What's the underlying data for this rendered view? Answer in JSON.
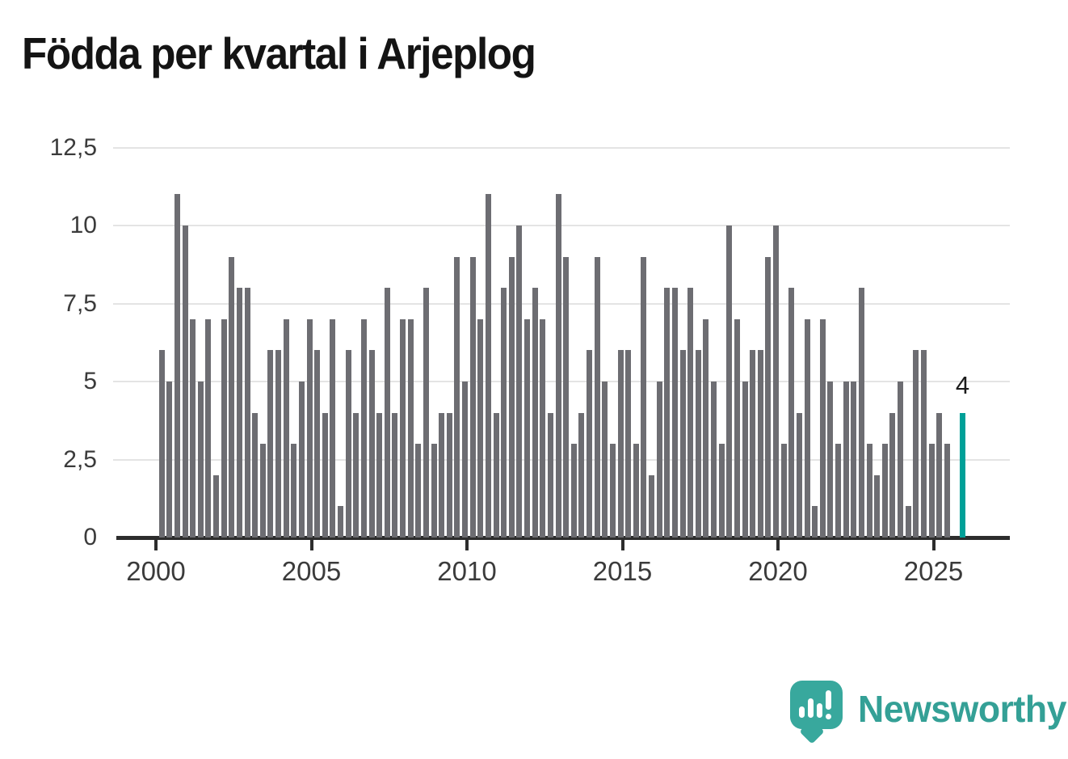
{
  "title": "Födda per kvartal i Arjeplog",
  "chart_data": {
    "type": "bar",
    "title": "Födda per kvartal i Arjeplog",
    "xlabel": "",
    "ylabel": "",
    "ylim": [
      0,
      12.5
    ],
    "grid": true,
    "legend": "none",
    "y_tick_labels": [
      "12,5",
      "10",
      "7,5",
      "5",
      "2,5",
      "0"
    ],
    "y_tick_values": [
      12.5,
      10,
      7.5,
      5,
      2.5,
      0
    ],
    "x_tick_labels": [
      "2000",
      "2005",
      "2010",
      "2015",
      "2020",
      "2025"
    ],
    "x_tick_years": [
      2000,
      2005,
      2010,
      2015,
      2020,
      2025
    ],
    "bar_color": "#6d6d72",
    "highlight_color": "#00a098",
    "series_by_year": [
      {
        "year": 2000,
        "values": [
          6,
          5,
          11,
          10
        ]
      },
      {
        "year": 2001,
        "values": [
          7,
          5,
          7,
          2
        ]
      },
      {
        "year": 2002,
        "values": [
          7,
          9,
          8,
          8
        ]
      },
      {
        "year": 2003,
        "values": [
          4,
          3,
          6,
          6
        ]
      },
      {
        "year": 2004,
        "values": [
          7,
          3,
          5,
          7
        ]
      },
      {
        "year": 2005,
        "values": [
          6,
          4,
          7,
          1
        ]
      },
      {
        "year": 2006,
        "values": [
          6,
          4,
          7,
          6
        ]
      },
      {
        "year": 2007,
        "values": [
          4,
          8,
          4,
          7
        ]
      },
      {
        "year": 2008,
        "values": [
          7,
          3,
          8,
          3
        ]
      },
      {
        "year": 2009,
        "values": [
          4,
          4,
          9,
          5
        ]
      },
      {
        "year": 2010,
        "values": [
          9,
          7,
          11,
          4
        ]
      },
      {
        "year": 2011,
        "values": [
          8,
          9,
          10,
          7
        ]
      },
      {
        "year": 2012,
        "values": [
          8,
          7,
          4,
          11
        ]
      },
      {
        "year": 2013,
        "values": [
          9,
          3,
          4,
          6
        ]
      },
      {
        "year": 2014,
        "values": [
          9,
          5,
          3,
          6
        ]
      },
      {
        "year": 2015,
        "values": [
          6,
          3,
          9,
          2
        ]
      },
      {
        "year": 2016,
        "values": [
          5,
          8,
          8,
          6
        ]
      },
      {
        "year": 2017,
        "values": [
          8,
          6,
          7,
          5
        ]
      },
      {
        "year": 2018,
        "values": [
          3,
          10,
          7,
          5
        ]
      },
      {
        "year": 2019,
        "values": [
          6,
          6,
          9,
          10
        ]
      },
      {
        "year": 2020,
        "values": [
          3,
          8,
          4,
          7
        ]
      },
      {
        "year": 2021,
        "values": [
          1,
          7,
          5,
          3
        ]
      },
      {
        "year": 2022,
        "values": [
          5,
          5,
          8,
          3
        ]
      },
      {
        "year": 2023,
        "values": [
          2,
          3,
          4,
          5
        ]
      },
      {
        "year": 2024,
        "values": [
          1,
          6,
          6,
          3
        ]
      },
      {
        "year": 2025,
        "values": [
          4,
          3,
          0,
          4
        ]
      }
    ],
    "highlight": {
      "year": 2025,
      "quarter": 4,
      "value": 4,
      "label": "4"
    }
  },
  "branding": {
    "logo_text": "Newsworthy",
    "logo_color": "#38a89d",
    "text_color": "#34a096"
  }
}
